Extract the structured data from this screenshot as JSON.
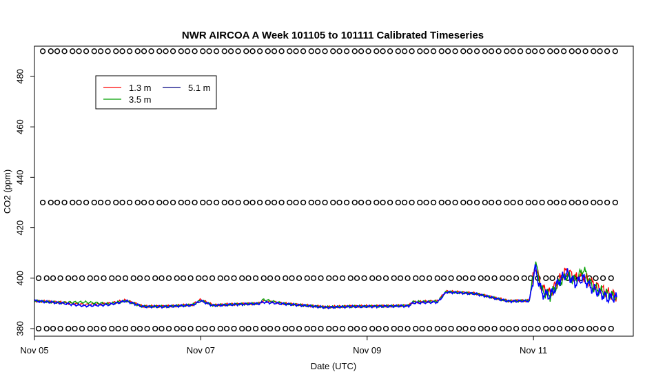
{
  "chart_data": {
    "type": "line",
    "title": "NWR AIRCOA A  Week 101105 to 101111  Calibrated Timeseries",
    "xlabel": "Date (UTC)",
    "ylabel": "CO2 (ppm)",
    "xlim": [
      5.0,
      12.2
    ],
    "ylim": [
      377,
      492
    ],
    "x_ticks": [
      {
        "value": 5,
        "label": "Nov 05"
      },
      {
        "value": 7,
        "label": "Nov 07"
      },
      {
        "value": 9,
        "label": "Nov 09"
      },
      {
        "value": 11,
        "label": "Nov 11"
      }
    ],
    "y_ticks": [
      380,
      400,
      420,
      440,
      460,
      480
    ],
    "legend": {
      "position": "top-left",
      "entries": [
        {
          "label": "1.3 m",
          "color": "#ff0000"
        },
        {
          "label": "5.1 m",
          "color": "#000080"
        },
        {
          "label": "3.5 m",
          "color": "#00a000"
        }
      ]
    },
    "reference_rows": [
      {
        "y": 490,
        "x_start": 5.1,
        "x_end": 11.98,
        "step": 0.087
      },
      {
        "y": 430,
        "x_start": 5.1,
        "x_end": 11.98,
        "step": 0.087
      },
      {
        "y": 400,
        "x_start": 5.05,
        "x_end": 11.98,
        "step": 0.087
      },
      {
        "y": 380,
        "x_start": 5.05,
        "x_end": 11.98,
        "step": 0.087
      }
    ],
    "series": [
      {
        "name": "1.3 m",
        "color": "#ff0000",
        "x": [
          5.0,
          5.3,
          5.6,
          5.9,
          6.1,
          6.3,
          6.6,
          6.9,
          7.0,
          7.15,
          7.3,
          7.7,
          7.75,
          8.0,
          8.5,
          8.8,
          9.2,
          9.5,
          9.55,
          9.85,
          9.95,
          10.3,
          10.7,
          10.95,
          11.02,
          11.1,
          11.2,
          11.3,
          11.4,
          11.5,
          11.6,
          11.7,
          11.8,
          11.9,
          12.0
        ],
        "y": [
          391.0,
          390.5,
          389.5,
          390.0,
          391.3,
          388.9,
          388.9,
          389.5,
          391.5,
          389.3,
          389.6,
          390.0,
          391.0,
          390.0,
          388.6,
          388.9,
          389.0,
          389.2,
          390.5,
          391.0,
          394.8,
          394.0,
          391.0,
          391.2,
          405.0,
          396.0,
          394.0,
          399.0,
          403.0,
          400.0,
          401.0,
          398.0,
          396.0,
          394.0,
          393.0
        ]
      },
      {
        "name": "3.5 m",
        "color": "#00a000",
        "x": [
          5.0,
          5.3,
          5.6,
          5.9,
          6.1,
          6.3,
          6.6,
          6.9,
          7.0,
          7.15,
          7.3,
          7.7,
          7.75,
          8.0,
          8.5,
          8.8,
          9.2,
          9.5,
          9.55,
          9.85,
          9.95,
          10.3,
          10.7,
          10.95,
          11.02,
          11.1,
          11.2,
          11.3,
          11.4,
          11.5,
          11.6,
          11.7,
          11.8,
          11.9,
          12.0
        ],
        "y": [
          391.0,
          390.3,
          390.5,
          389.8,
          391.0,
          388.8,
          388.8,
          389.4,
          391.2,
          389.2,
          389.5,
          390.0,
          391.5,
          389.9,
          388.5,
          388.8,
          388.9,
          389.1,
          390.6,
          390.8,
          394.6,
          393.9,
          390.9,
          391.1,
          406.5,
          395.0,
          393.0,
          398.0,
          401.0,
          399.0,
          403.5,
          397.0,
          395.0,
          393.5,
          392.5
        ]
      },
      {
        "name": "5.1 m",
        "color": "#0000ff",
        "x": [
          5.0,
          5.3,
          5.6,
          5.9,
          6.1,
          6.3,
          6.6,
          6.9,
          7.0,
          7.15,
          7.3,
          7.7,
          7.75,
          8.0,
          8.5,
          8.8,
          9.2,
          9.5,
          9.55,
          9.85,
          9.95,
          10.3,
          10.7,
          10.95,
          11.02,
          11.1,
          11.2,
          11.3,
          11.4,
          11.5,
          11.6,
          11.7,
          11.8,
          11.9,
          12.0
        ],
        "y": [
          391.0,
          390.2,
          389.0,
          389.5,
          391.0,
          388.7,
          388.7,
          389.3,
          391.0,
          389.1,
          389.4,
          389.9,
          390.5,
          389.8,
          388.4,
          388.7,
          388.8,
          389.0,
          390.2,
          390.5,
          394.5,
          393.8,
          390.8,
          391.0,
          404.0,
          394.0,
          393.0,
          398.5,
          402.0,
          398.0,
          400.0,
          396.0,
          394.0,
          392.0,
          392.5
        ]
      }
    ]
  }
}
